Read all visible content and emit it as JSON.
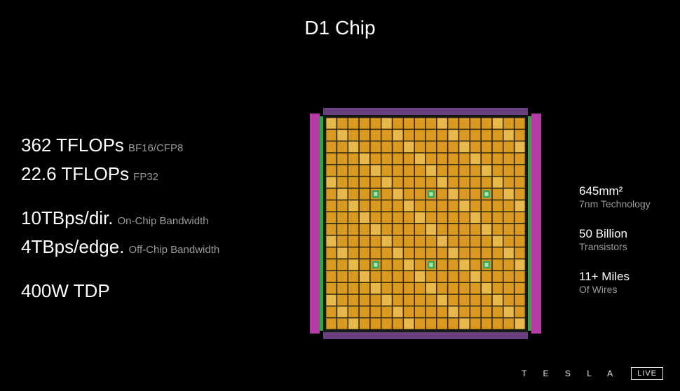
{
  "title": "D1 Chip",
  "left": [
    {
      "value": "362 TFLOPs",
      "sub": "BF16/CFP8",
      "gap": false
    },
    {
      "value": "22.6 TFLOPs",
      "sub": "FP32",
      "gap": false
    },
    {
      "value": "10TBps/dir.",
      "sub": "On-Chip Bandwidth",
      "gap": true
    },
    {
      "value": "4TBps/edge.",
      "sub": "Off-Chip Bandwidth",
      "gap": false
    },
    {
      "value": "400W TDP",
      "sub": "",
      "gap": true
    }
  ],
  "right": [
    {
      "value": "645mm²",
      "sub": "7nm Technology"
    },
    {
      "value": "50 Billion",
      "sub": "Transistors"
    },
    {
      "value": "11+ Miles",
      "sub": "Of Wires"
    }
  ],
  "footer": {
    "brand": "T E S L A",
    "live": "LIVE"
  },
  "chip_style": {
    "background": "#000000",
    "grid_cells": 18,
    "cell_fill": "#d99a1f",
    "cell_highlight": "#e8b84a",
    "cell_stroke": "#5a3a00",
    "edge_left_color": "#b63aa8",
    "edge_right_color": "#b63aa8",
    "edge_inner_green": "#2fa84a",
    "edge_top_color": "#6a3f80",
    "edge_bottom_color": "#6a3f80",
    "frame_color": "#0f1a0f",
    "marker_color": "#3aa85a",
    "marker_inner": "#a8e6b8",
    "marker_positions": [
      [
        4,
        6
      ],
      [
        9,
        6
      ],
      [
        14,
        6
      ],
      [
        4,
        12
      ],
      [
        9,
        12
      ],
      [
        14,
        12
      ]
    ]
  }
}
